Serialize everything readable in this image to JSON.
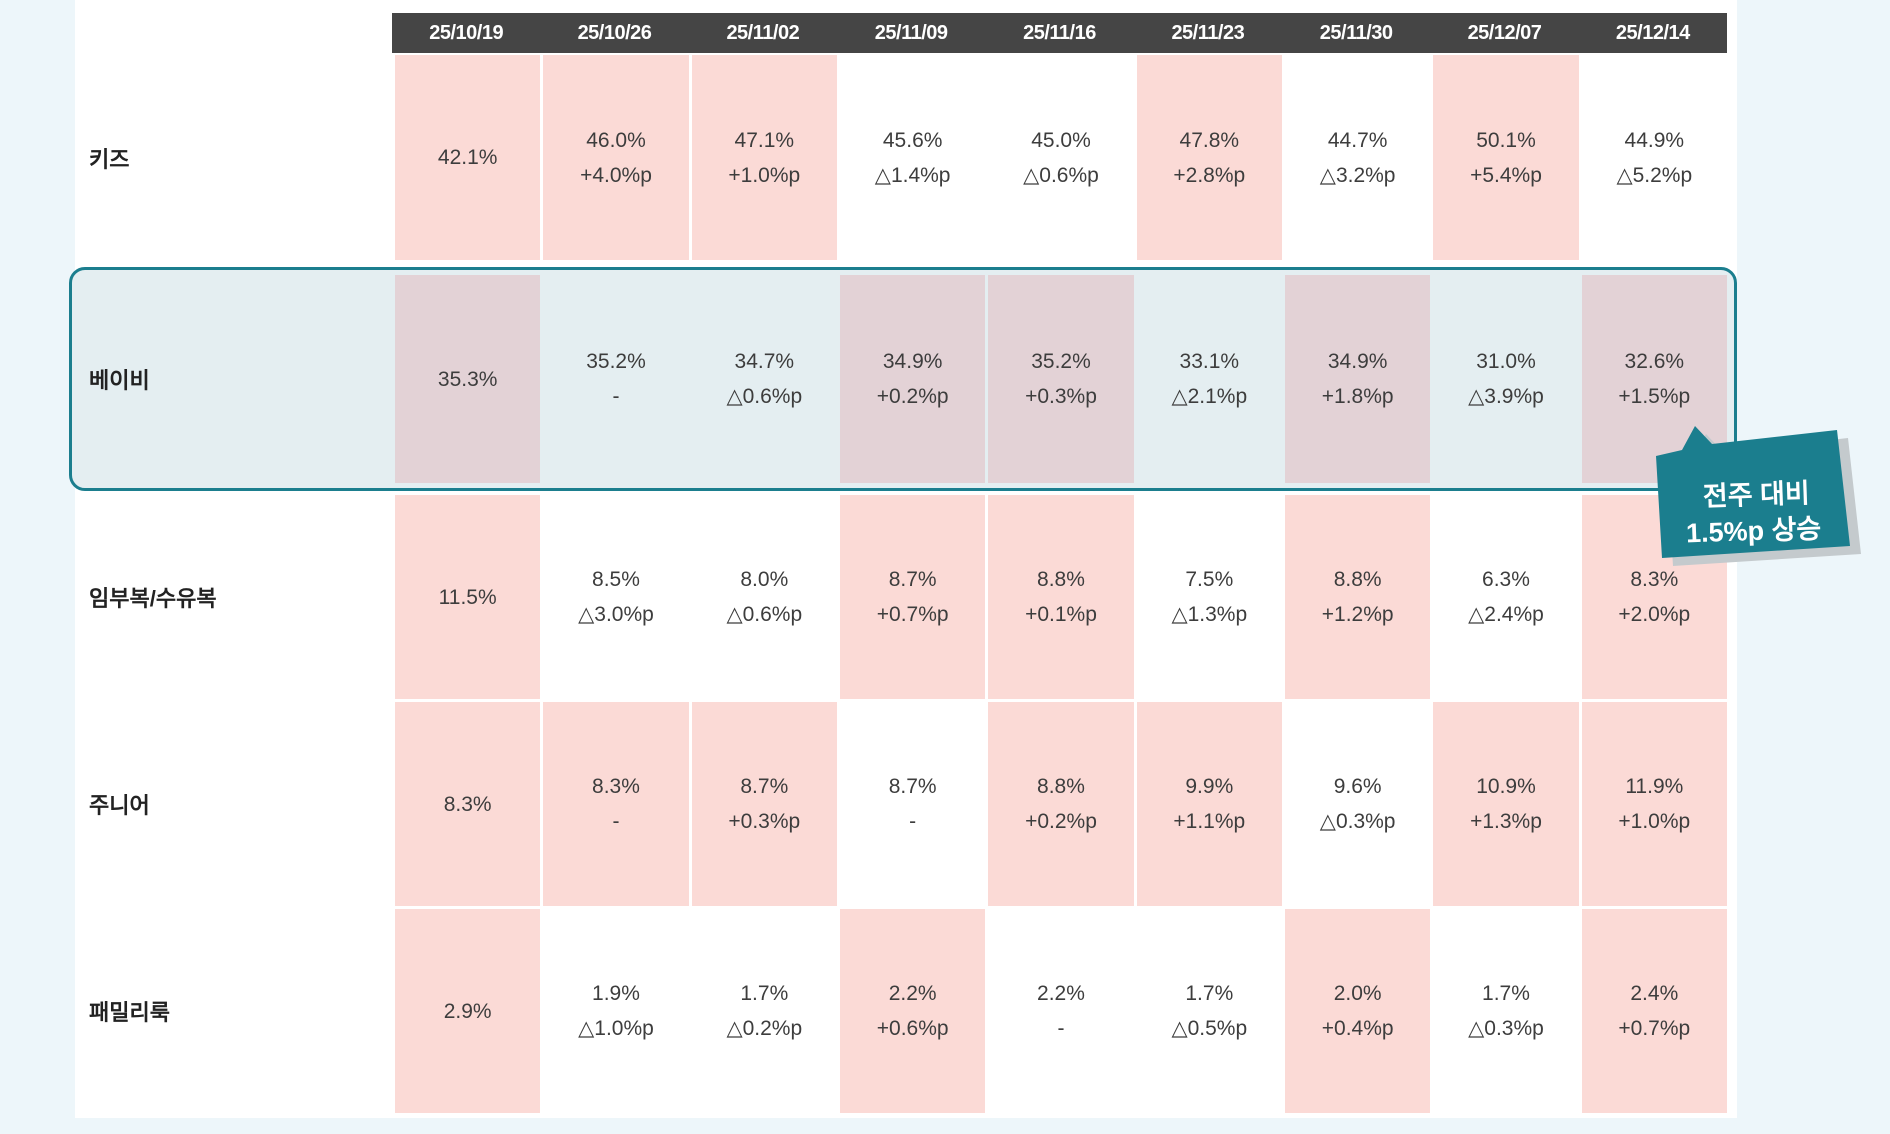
{
  "colors": {
    "page_bg": "#edf6fa",
    "sheet_bg": "#ffffff",
    "header_bg": "#454545",
    "header_text": "#ffffff",
    "pink_cell": "#fbdad6",
    "baby_pink_cell": "#e3d2d6",
    "baby_blue_cell": "#e4eef1",
    "highlight_border": "#1b7e8e",
    "callout_bg": "#1b7e8e",
    "callout_shadow": "#c4cacd",
    "cell_text": "#3d3d3d"
  },
  "header": {
    "dates": [
      "25/10/19",
      "25/10/26",
      "25/11/02",
      "25/11/09",
      "25/11/16",
      "25/11/23",
      "25/11/30",
      "25/12/07",
      "25/12/14"
    ]
  },
  "table": {
    "rows": [
      {
        "label": "키즈",
        "cells": [
          {
            "v": "42.1%",
            "d": "",
            "bg": "pink"
          },
          {
            "v": "46.0%",
            "d": "+4.0%p",
            "bg": "pink"
          },
          {
            "v": "47.1%",
            "d": "+1.0%p",
            "bg": "pink"
          },
          {
            "v": "45.6%",
            "d": "△1.4%p",
            "bg": "plain"
          },
          {
            "v": "45.0%",
            "d": "△0.6%p",
            "bg": "plain"
          },
          {
            "v": "47.8%",
            "d": "+2.8%p",
            "bg": "pink"
          },
          {
            "v": "44.7%",
            "d": "△3.2%p",
            "bg": "plain"
          },
          {
            "v": "50.1%",
            "d": "+5.4%p",
            "bg": "pink"
          },
          {
            "v": "44.9%",
            "d": "△5.2%p",
            "bg": "plain"
          }
        ]
      },
      {
        "label": "베이비",
        "cells": [
          {
            "v": "35.3%",
            "d": "",
            "bg": "mauve"
          },
          {
            "v": "35.2%",
            "d": "-",
            "bg": "blue"
          },
          {
            "v": "34.7%",
            "d": "△0.6%p",
            "bg": "blue"
          },
          {
            "v": "34.9%",
            "d": "+0.2%p",
            "bg": "mauve"
          },
          {
            "v": "35.2%",
            "d": "+0.3%p",
            "bg": "mauve"
          },
          {
            "v": "33.1%",
            "d": "△2.1%p",
            "bg": "blue"
          },
          {
            "v": "34.9%",
            "d": "+1.8%p",
            "bg": "mauve"
          },
          {
            "v": "31.0%",
            "d": "△3.9%p",
            "bg": "blue"
          },
          {
            "v": "32.6%",
            "d": "+1.5%p",
            "bg": "mauve"
          }
        ]
      },
      {
        "label": "임부복/수유복",
        "cells": [
          {
            "v": "11.5%",
            "d": "",
            "bg": "pink"
          },
          {
            "v": "8.5%",
            "d": "△3.0%p",
            "bg": "plain"
          },
          {
            "v": "8.0%",
            "d": "△0.6%p",
            "bg": "plain"
          },
          {
            "v": "8.7%",
            "d": "+0.7%p",
            "bg": "pink"
          },
          {
            "v": "8.8%",
            "d": "+0.1%p",
            "bg": "pink"
          },
          {
            "v": "7.5%",
            "d": "△1.3%p",
            "bg": "plain"
          },
          {
            "v": "8.8%",
            "d": "+1.2%p",
            "bg": "pink"
          },
          {
            "v": "6.3%",
            "d": "△2.4%p",
            "bg": "plain"
          },
          {
            "v": "8.3%",
            "d": "+2.0%p",
            "bg": "pink"
          }
        ]
      },
      {
        "label": "주니어",
        "cells": [
          {
            "v": "8.3%",
            "d": "",
            "bg": "pink"
          },
          {
            "v": "8.3%",
            "d": "-",
            "bg": "pink"
          },
          {
            "v": "8.7%",
            "d": "+0.3%p",
            "bg": "pink"
          },
          {
            "v": "8.7%",
            "d": "-",
            "bg": "plain"
          },
          {
            "v": "8.8%",
            "d": "+0.2%p",
            "bg": "pink"
          },
          {
            "v": "9.9%",
            "d": "+1.1%p",
            "bg": "pink"
          },
          {
            "v": "9.6%",
            "d": "△0.3%p",
            "bg": "plain"
          },
          {
            "v": "10.9%",
            "d": "+1.3%p",
            "bg": "pink"
          },
          {
            "v": "11.9%",
            "d": "+1.0%p",
            "bg": "pink"
          }
        ]
      },
      {
        "label": "패밀리룩",
        "cells": [
          {
            "v": "2.9%",
            "d": "",
            "bg": "pink"
          },
          {
            "v": "1.9%",
            "d": "△1.0%p",
            "bg": "plain"
          },
          {
            "v": "1.7%",
            "d": "△0.2%p",
            "bg": "plain"
          },
          {
            "v": "2.2%",
            "d": "+0.6%p",
            "bg": "pink"
          },
          {
            "v": "2.2%",
            "d": "-",
            "bg": "plain"
          },
          {
            "v": "1.7%",
            "d": "△0.5%p",
            "bg": "plain"
          },
          {
            "v": "2.0%",
            "d": "+0.4%p",
            "bg": "pink"
          },
          {
            "v": "1.7%",
            "d": "△0.3%p",
            "bg": "plain"
          },
          {
            "v": "2.4%",
            "d": "+0.7%p",
            "bg": "pink"
          }
        ]
      }
    ]
  },
  "callout": {
    "line1": "전주 대비",
    "line2": "1.5%p 상승"
  },
  "chart_data": {
    "type": "table",
    "title": "",
    "categories": [
      "25/10/19",
      "25/10/26",
      "25/11/02",
      "25/11/09",
      "25/11/16",
      "25/11/23",
      "25/11/30",
      "25/12/07",
      "25/12/14"
    ],
    "series": [
      {
        "name": "키즈",
        "values": [
          42.1,
          46.0,
          47.1,
          45.6,
          45.0,
          47.8,
          44.7,
          50.1,
          44.9
        ],
        "delta_pct_points": [
          null,
          4.0,
          1.0,
          -1.4,
          -0.6,
          2.8,
          -3.2,
          5.4,
          -5.2
        ]
      },
      {
        "name": "베이비",
        "values": [
          35.3,
          35.2,
          34.7,
          34.9,
          35.2,
          33.1,
          34.9,
          31.0,
          32.6
        ],
        "delta_pct_points": [
          null,
          0,
          -0.6,
          0.2,
          0.3,
          -2.1,
          1.8,
          -3.9,
          1.5
        ]
      },
      {
        "name": "임부복/수유복",
        "values": [
          11.5,
          8.5,
          8.0,
          8.7,
          8.8,
          7.5,
          8.8,
          6.3,
          8.3
        ],
        "delta_pct_points": [
          null,
          -3.0,
          -0.6,
          0.7,
          0.1,
          -1.3,
          1.2,
          -2.4,
          2.0
        ]
      },
      {
        "name": "주니어",
        "values": [
          8.3,
          8.3,
          8.7,
          8.7,
          8.8,
          9.9,
          9.6,
          10.9,
          11.9
        ],
        "delta_pct_points": [
          null,
          0,
          0.3,
          0,
          0.2,
          1.1,
          -0.3,
          1.3,
          1.0
        ]
      },
      {
        "name": "패밀리룩",
        "values": [
          2.9,
          1.9,
          1.7,
          2.2,
          2.2,
          1.7,
          2.0,
          1.7,
          2.4
        ],
        "delta_pct_points": [
          null,
          -1.0,
          -0.2,
          0.6,
          0,
          -0.5,
          0.4,
          -0.3,
          0.7
        ]
      }
    ],
    "annotations": [
      "전주 대비 1.5%p 상승 (베이비, 25/12/14)"
    ],
    "legend_position": "none",
    "notes": "Pink cells mark week-over-week increases; white cells mark decreases (△); 베이비 row highlighted with teal box."
  }
}
